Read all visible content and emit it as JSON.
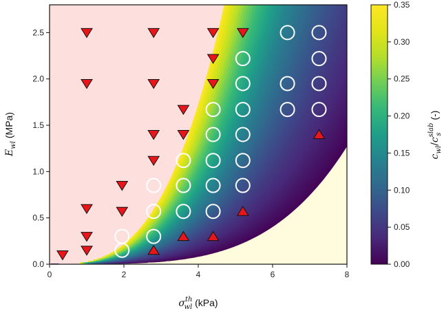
{
  "chart_data": {
    "type": "heatmap",
    "title": "",
    "xlabel": {
      "symbol": "σ",
      "sup": "th",
      "sub": "wl",
      "unit": " (kPa)"
    },
    "ylabel": {
      "symbol": "E",
      "sub": "wl",
      "unit": " (MPa)"
    },
    "colorbar_label": {
      "num": "c",
      "num_sub": "wl",
      "slash": "/",
      "den": "c",
      "den_sup": "slab",
      "den_sub": "s",
      "unit": " (-)"
    },
    "xlim": [
      0,
      8
    ],
    "ylim": [
      0,
      2.8
    ],
    "clim": [
      0,
      0.35
    ],
    "x_ticks": [
      0,
      2,
      4,
      6,
      8
    ],
    "x_tick_labels": [
      "0",
      "2",
      "4",
      "6",
      "8"
    ],
    "y_ticks": [
      0.0,
      0.5,
      1.0,
      1.5,
      2.0,
      2.5
    ],
    "y_tick_labels": [
      "0.0",
      "0.5",
      "1.0",
      "1.5",
      "2.0",
      "2.5"
    ],
    "colorbar_ticks": [
      0.0,
      0.05,
      0.1,
      0.15,
      0.2,
      0.25,
      0.3,
      0.35
    ],
    "colorbar_tick_labels": [
      "0.00",
      "0.05",
      "0.10",
      "0.15",
      "0.20",
      "0.25",
      "0.30",
      "0.35"
    ],
    "regions": {
      "upper_left_color": "#fde0de",
      "lower_right_color": "#fffbdc",
      "upper_boundary": {
        "a": 0.027,
        "p": 3.0,
        "description": "E = 0.027 * sigma^3"
      },
      "lower_boundary": {
        "a": 0.00031,
        "p": 4.0,
        "description": "E = 0.00031 * sigma^4"
      }
    },
    "series": [
      {
        "name": "down triangles",
        "marker": "triangle-down",
        "color": "#e8161a",
        "points": [
          [
            0.35,
            0.1
          ],
          [
            1.0,
            0.15
          ],
          [
            1.0,
            0.3
          ],
          [
            1.0,
            0.6
          ],
          [
            1.95,
            0.57
          ],
          [
            1.95,
            0.85
          ],
          [
            2.8,
            1.12
          ],
          [
            2.8,
            1.4
          ],
          [
            3.6,
            1.4
          ],
          [
            3.6,
            1.67
          ],
          [
            4.4,
            1.95
          ],
          [
            4.4,
            2.22
          ],
          [
            1.0,
            1.95
          ],
          [
            1.0,
            2.5
          ],
          [
            2.8,
            1.95
          ],
          [
            2.8,
            2.5
          ],
          [
            4.4,
            2.5
          ],
          [
            5.2,
            2.5
          ]
        ]
      },
      {
        "name": "up triangles",
        "marker": "triangle-up",
        "color": "#e8161a",
        "points": [
          [
            2.8,
            0.15
          ],
          [
            3.6,
            0.3
          ],
          [
            4.4,
            0.3
          ],
          [
            5.2,
            0.57
          ],
          [
            7.25,
            1.4
          ]
        ]
      },
      {
        "name": "open circles",
        "marker": "circle-open",
        "color": "#ffffff",
        "points": [
          [
            1.95,
            0.15
          ],
          [
            1.95,
            0.3
          ],
          [
            2.8,
            0.3
          ],
          [
            2.8,
            0.57
          ],
          [
            2.8,
            0.85
          ],
          [
            3.6,
            0.57
          ],
          [
            3.6,
            0.85
          ],
          [
            3.6,
            1.12
          ],
          [
            4.4,
            0.57
          ],
          [
            4.4,
            0.85
          ],
          [
            4.4,
            1.12
          ],
          [
            4.4,
            1.4
          ],
          [
            4.4,
            1.67
          ],
          [
            5.2,
            0.85
          ],
          [
            5.2,
            1.12
          ],
          [
            5.2,
            1.4
          ],
          [
            5.2,
            1.67
          ],
          [
            5.2,
            1.95
          ],
          [
            5.2,
            2.22
          ],
          [
            6.4,
            1.67
          ],
          [
            6.4,
            1.95
          ],
          [
            6.4,
            2.5
          ],
          [
            7.25,
            1.67
          ],
          [
            7.25,
            1.95
          ],
          [
            7.25,
            2.22
          ],
          [
            7.25,
            2.5
          ]
        ]
      }
    ]
  }
}
